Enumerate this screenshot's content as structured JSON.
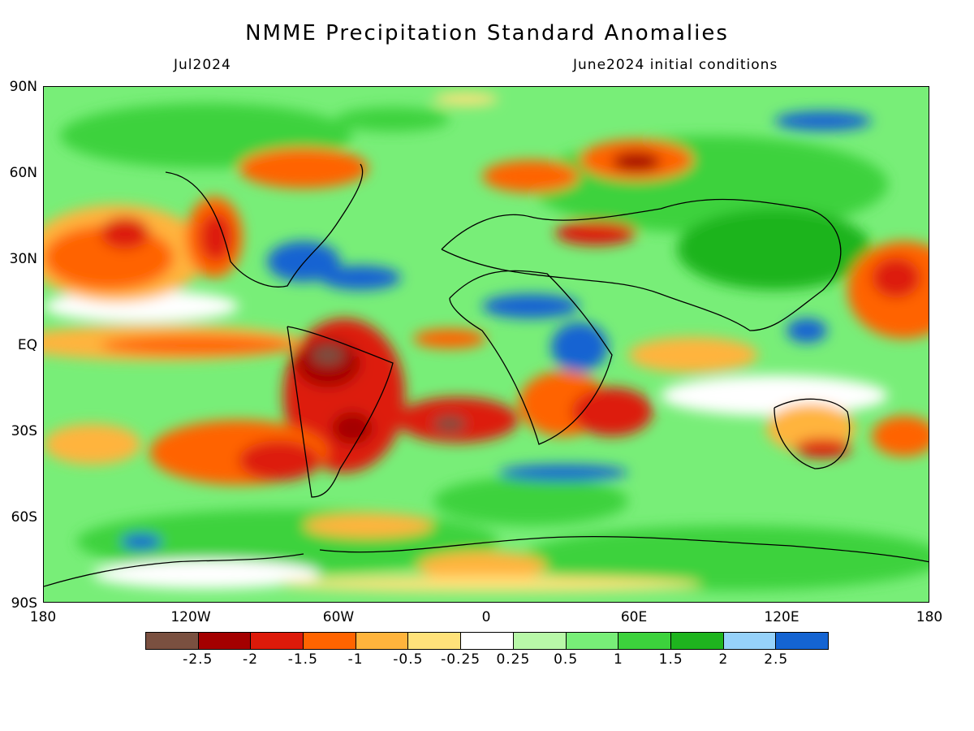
{
  "title": "NMME Precipitation Standard Anomalies",
  "valid_month": "Jul2024",
  "init_conditions": "June2024 initial conditions",
  "map": {
    "lat_labels": [
      "90N",
      "60N",
      "30N",
      "EQ",
      "30S",
      "60S",
      "90S"
    ],
    "lon_labels": [
      "180",
      "120W",
      "60W",
      "0",
      "60E",
      "120E",
      "180"
    ]
  },
  "colorbar": {
    "colors": [
      "#7a5040",
      "#a40000",
      "#dd1a0a",
      "#ff6400",
      "#ffb43c",
      "#ffe27a",
      "#ffffff",
      "#b8f8a8",
      "#78ee78",
      "#3cd23c",
      "#1eb41e",
      "#96d2fa",
      "#1464d2"
    ],
    "labels": [
      "-2.5",
      "-2",
      "-1.5",
      "-1",
      "-0.5",
      "-0.25",
      "0.25",
      "0.5",
      "1",
      "1.5",
      "2",
      "2.5"
    ]
  }
}
